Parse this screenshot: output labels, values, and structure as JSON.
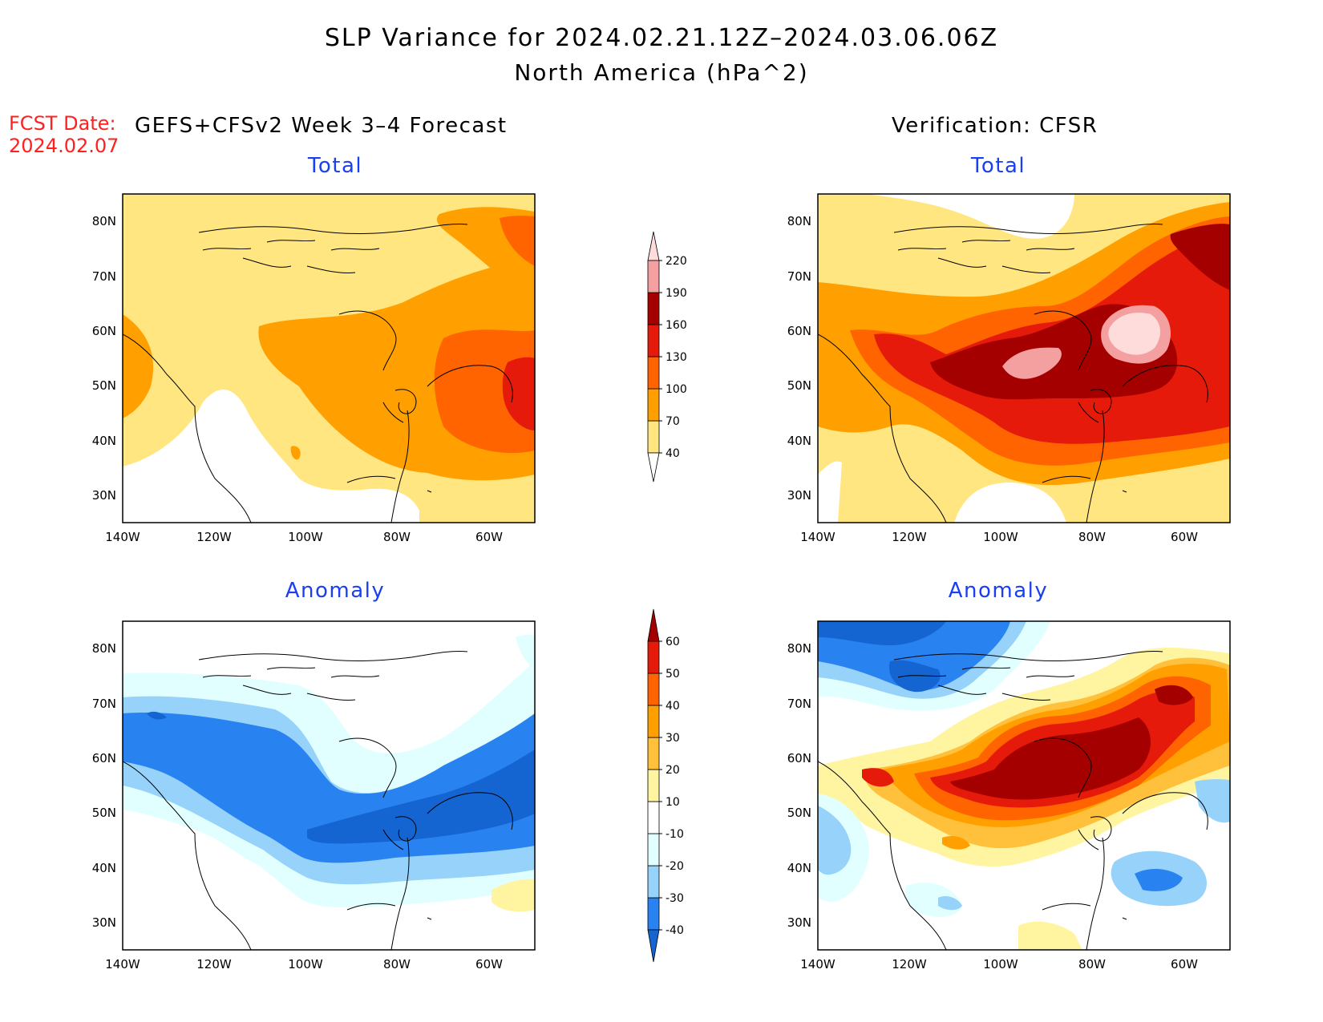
{
  "header": {
    "title": "SLP Variance for 2024.02.21.12Z–2024.03.06.06Z",
    "subtitle": "North America (hPa^2)",
    "fcst_label": "FCST Date:",
    "fcst_date": "2024.02.07",
    "left_column_title": "GEFS+CFSv2 Week 3–4 Forecast",
    "right_column_title": "Verification: CFSR"
  },
  "panels": {
    "total_title": "Total",
    "anomaly_title": "Anomaly"
  },
  "axes": {
    "lon_labels": [
      "140W",
      "120W",
      "100W",
      "80W",
      "60W"
    ],
    "lat_labels": [
      "80N",
      "70N",
      "60N",
      "50N",
      "40N",
      "30N"
    ]
  },
  "colorbars": {
    "total": {
      "labels": [
        "40",
        "70",
        "100",
        "130",
        "160",
        "190",
        "220"
      ],
      "colors": [
        "#ffffff",
        "#ffe680",
        "#ffa000",
        "#ff6400",
        "#e61a0a",
        "#a50000",
        "#f5a0a0",
        "#ffdcdc"
      ]
    },
    "anomaly": {
      "labels": [
        "-40",
        "-30",
        "-20",
        "-10",
        "10",
        "20",
        "30",
        "40",
        "50",
        "60"
      ],
      "colors": [
        "#1464d2",
        "#2882f0",
        "#96d2fa",
        "#e1ffff",
        "#ffffff",
        "#fff5a0",
        "#ffc03c",
        "#ffa000",
        "#ff6400",
        "#e61a0a",
        "#a50000"
      ]
    }
  }
}
